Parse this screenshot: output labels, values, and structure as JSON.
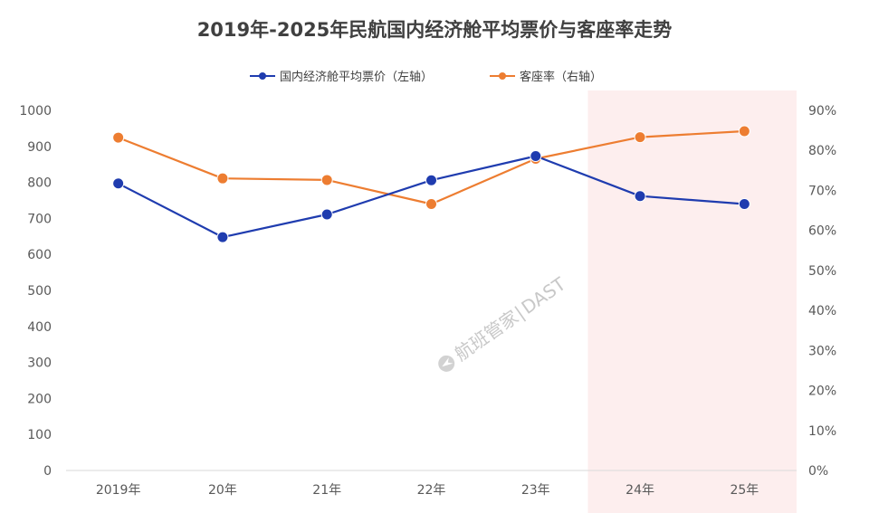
{
  "chart_data": {
    "type": "line",
    "title": "2019年-2025年民航国内经济舱平均票价与客座率走势",
    "categories": [
      "2019年",
      "20年",
      "21年",
      "22年",
      "23年",
      "24年",
      "25年"
    ],
    "series": [
      {
        "name": "国内经济舱平均票价（左轴）",
        "axis": "left",
        "color": "#1f3caf",
        "values": [
          797,
          648,
          711,
          806,
          873,
          762,
          740
        ]
      },
      {
        "name": "客座率（右轴）",
        "axis": "right",
        "color": "#ed7d31",
        "values": [
          83.2,
          73.0,
          72.6,
          66.6,
          77.9,
          83.3,
          84.8
        ]
      }
    ],
    "left_axis": {
      "ylim": [
        0,
        1000
      ],
      "ticks": [
        "0",
        "100",
        "200",
        "300",
        "400",
        "500",
        "600",
        "700",
        "800",
        "900",
        "1000"
      ]
    },
    "right_axis": {
      "ylim": [
        0,
        90
      ],
      "ticks": [
        "0%",
        "10%",
        "20%",
        "30%",
        "40%",
        "50%",
        "60%",
        "70%",
        "80%",
        "90%"
      ]
    },
    "highlight_categories": [
      "24年",
      "25年"
    ],
    "highlight_color": "#fdeeee",
    "legend_position": "top-center",
    "grid": false
  },
  "watermark": {
    "text": "航班管家",
    "brand": "DAST",
    "logo_icon": "plane-logo-icon"
  }
}
